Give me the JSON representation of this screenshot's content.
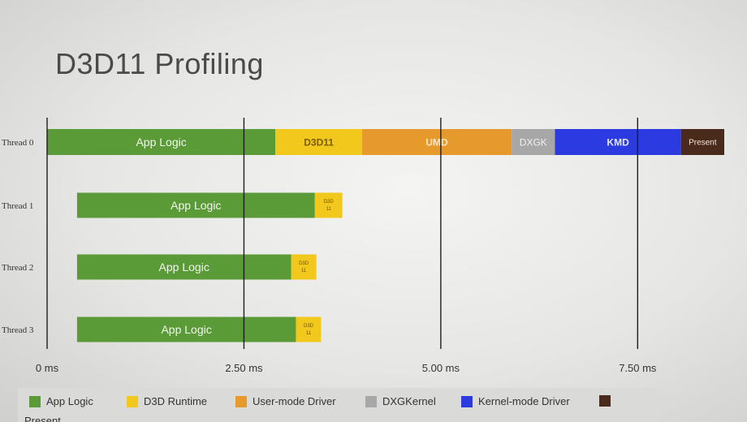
{
  "title": "D3D11 Profiling",
  "colors": {
    "app": "#5a9a37",
    "d3d": "#f2c81d",
    "umd": "#e79a2c",
    "dxgk": "#a7a7a7",
    "kmd": "#2b3be0",
    "present": "#4a2a1a"
  },
  "chart_data": {
    "type": "gantt",
    "x_unit": "ms",
    "x_range": [
      0,
      8.6
    ],
    "x_ticks": [
      {
        "value": 0,
        "label": "0 ms"
      },
      {
        "value": 2.5,
        "label": "2.50 ms"
      },
      {
        "value": 5.0,
        "label": "5.00 ms"
      },
      {
        "value": 7.5,
        "label": "7.50 ms"
      }
    ],
    "threads": [
      {
        "label": "Thread 0",
        "segments": [
          {
            "type": "app",
            "start": 0.0,
            "end": 2.9,
            "label": "App Logic"
          },
          {
            "type": "d3d",
            "start": 2.9,
            "end": 4.0,
            "label": "D3D11"
          },
          {
            "type": "umd",
            "start": 4.0,
            "end": 5.9,
            "label": "UMD"
          },
          {
            "type": "dxgk",
            "start": 5.9,
            "end": 6.45,
            "label": "DXGK"
          },
          {
            "type": "kmd",
            "start": 6.45,
            "end": 8.05,
            "label": "KMD"
          },
          {
            "type": "present",
            "start": 8.05,
            "end": 8.6,
            "label": "Present"
          }
        ]
      },
      {
        "label": "Thread 1",
        "segments": [
          {
            "type": "app",
            "start": 0.38,
            "end": 3.4,
            "label": "App Logic"
          },
          {
            "type": "d3d",
            "start": 3.4,
            "end": 3.75,
            "label": "D3D 11"
          }
        ]
      },
      {
        "label": "Thread 2",
        "segments": [
          {
            "type": "app",
            "start": 0.38,
            "end": 3.1,
            "label": "App Logic"
          },
          {
            "type": "d3d",
            "start": 3.1,
            "end": 3.42,
            "label": "D3D 11"
          }
        ]
      },
      {
        "label": "Thread 3",
        "segments": [
          {
            "type": "app",
            "start": 0.38,
            "end": 3.16,
            "label": "App Logic"
          },
          {
            "type": "d3d",
            "start": 3.16,
            "end": 3.48,
            "label": "D3D 11"
          }
        ]
      }
    ],
    "legend": [
      {
        "type": "app",
        "label": "App Logic"
      },
      {
        "type": "d3d",
        "label": "D3D Runtime"
      },
      {
        "type": "umd",
        "label": "User-mode Driver"
      },
      {
        "type": "dxgk",
        "label": "DXGKernel"
      },
      {
        "type": "kmd",
        "label": "Kernel-mode Driver"
      },
      {
        "type": "present",
        "label": "Present"
      }
    ]
  }
}
